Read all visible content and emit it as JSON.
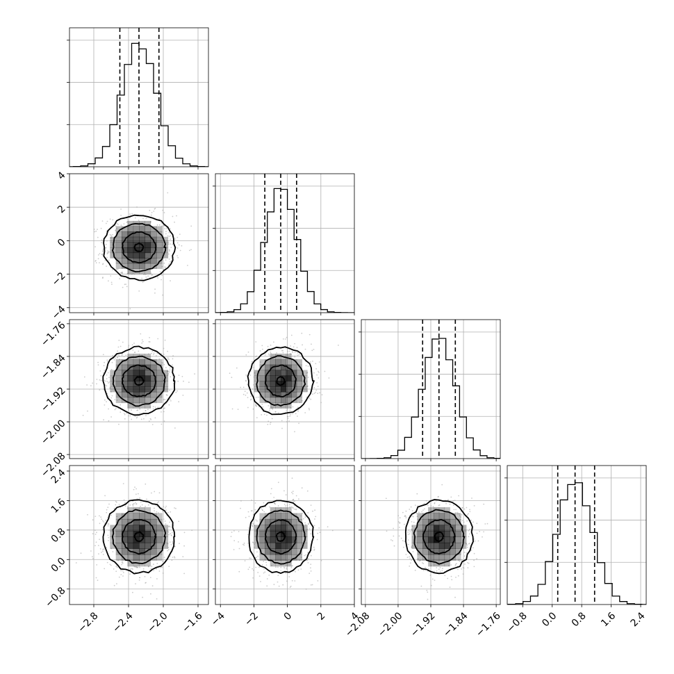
{
  "chart_data": {
    "type": "corner",
    "grid": true,
    "colors": {
      "line": "#000000",
      "grid": "#b0b0b0",
      "density": "#000000",
      "points": "#a0a0a0",
      "background": "#ffffff"
    },
    "params": [
      {
        "name": "",
        "range": [
          -3.08,
          -1.48
        ],
        "ticks": [
          -2.8,
          -2.4,
          -2.0,
          -1.6
        ],
        "tick_labels": [
          "−2.8",
          "−2.4",
          "−2.0",
          "−1.6"
        ],
        "mean": -2.28,
        "sd": 0.2,
        "quantiles": [
          -2.5,
          -2.28,
          -2.05
        ]
      },
      {
        "name": "",
        "range": [
          -4.3,
          4.0
        ],
        "ticks": [
          -4,
          -2,
          0,
          2,
          4
        ],
        "tick_labels": [
          "−4",
          "−2",
          "0",
          "2",
          "4"
        ],
        "mean": -0.4,
        "sd": 0.95,
        "quantiles": [
          -1.35,
          -0.4,
          0.55
        ]
      },
      {
        "name": "",
        "range": [
          -2.09,
          -1.75
        ],
        "ticks": [
          -2.08,
          -2.0,
          -1.92,
          -1.84,
          -1.76
        ],
        "tick_labels": [
          "−2.08",
          "−2.00",
          "−1.92",
          "−1.84",
          "−1.76"
        ],
        "mean": -1.9,
        "sd": 0.04,
        "quantiles": [
          -1.94,
          -1.9,
          -1.86
        ]
      },
      {
        "name": "",
        "range": [
          -1.22,
          2.55
        ],
        "ticks": [
          -0.8,
          0.0,
          0.8,
          1.6,
          2.4
        ],
        "tick_labels": [
          "−0.8",
          "0.0",
          "0.8",
          "1.6",
          "2.4"
        ],
        "mean": 0.62,
        "sd": 0.48,
        "quantiles": [
          0.15,
          0.62,
          1.15
        ]
      }
    ],
    "histogram_bins": 20,
    "contour_levels": 4
  }
}
